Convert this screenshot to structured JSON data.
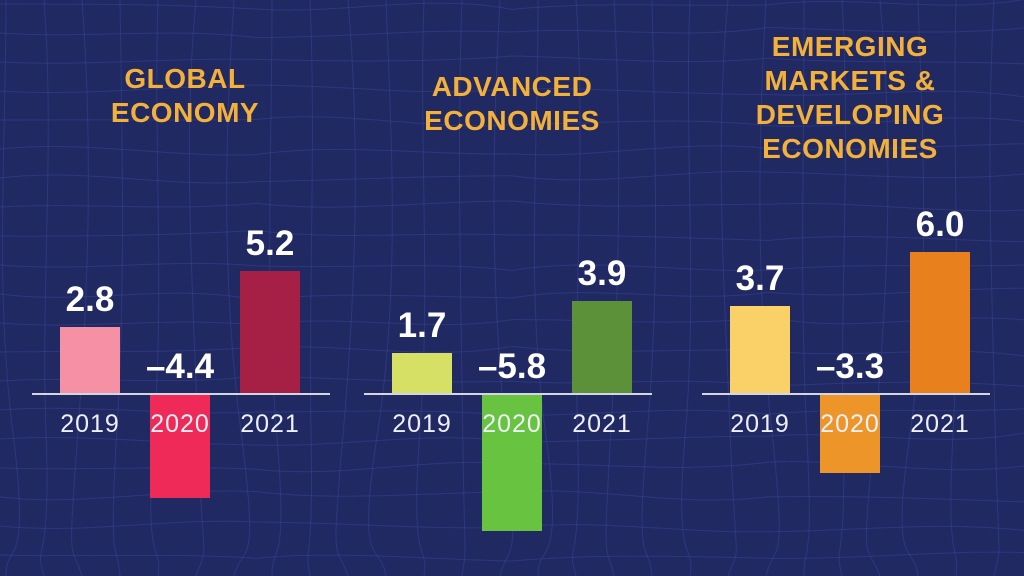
{
  "colors": {
    "background": "#212963",
    "mesh_line": "#3b4aa0",
    "title_text": "#f3b13a",
    "value_text": "#ffffff",
    "year_text": "#eef0f8",
    "axis_line": "#d4d6e2"
  },
  "chart_data": {
    "type": "bar",
    "layout": "three grouped bar charts on shared dark navy wireframe background, zero baseline drawn as light horizontal line, values labeled above positive bars and above baseline for negative bars, years labeled under baseline",
    "categories": [
      "2019",
      "2020",
      "2021"
    ],
    "groups": [
      {
        "title": "GLOBAL ECONOMY",
        "values": [
          2.8,
          -4.4,
          5.2
        ],
        "labels": [
          "2.8",
          "–4.4",
          "5.2"
        ],
        "bar_colors": [
          "#f590a5",
          "#f02a58",
          "#a62045"
        ]
      },
      {
        "title": "ADVANCED ECONOMIES",
        "values": [
          1.7,
          -5.8,
          3.9
        ],
        "labels": [
          "1.7",
          "–5.8",
          "3.9"
        ],
        "bar_colors": [
          "#d5e065",
          "#67c340",
          "#5d9139"
        ]
      },
      {
        "title": "EMERGING MARKETS & DEVELOPING ECONOMIES",
        "values": [
          3.7,
          -3.3,
          6.0
        ],
        "labels": [
          "3.7",
          "–3.3",
          "6.0"
        ],
        "bar_colors": [
          "#fad169",
          "#ee9529",
          "#e8811d"
        ]
      }
    ],
    "ylim": [
      -6.5,
      7
    ],
    "grid": false,
    "legend": "none"
  }
}
